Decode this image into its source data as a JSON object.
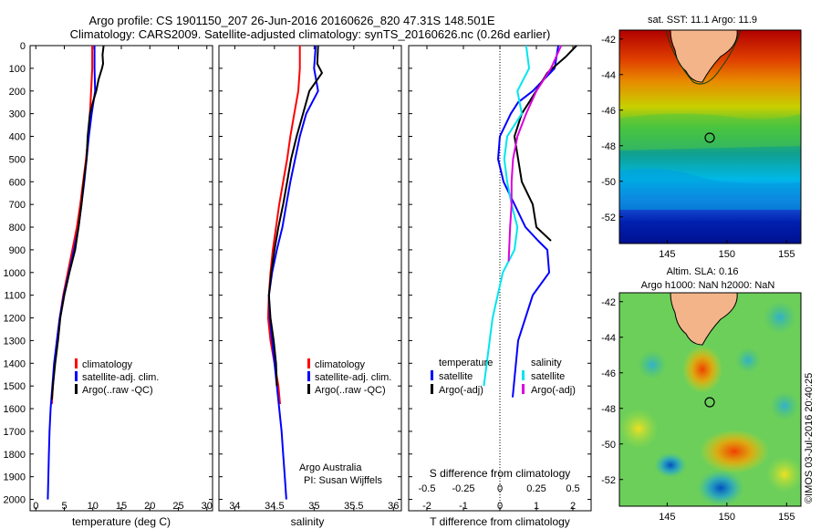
{
  "header": {
    "line1": "Argo profile: CS 1901150_207 26-Jun-2016 20160626_820 47.31S 148.501E",
    "line2": "Climatology: CARS2009. Satellite-adjusted climatology: synTS_20160626.nc (0.26d earlier)"
  },
  "side_label": "©IMOS 03-Jul-2016 20:40:25",
  "map1": {
    "title": "sat. SST: 11.1  Argo: 11.9"
  },
  "map2": {
    "title1": "Altim. SLA: 0.16",
    "title2": "Argo h1000: NaN h2000: NaN"
  },
  "colors": {
    "argo": "#000000",
    "climatology": "#ff0000",
    "satellite": "#0000ff",
    "sal_satellite": "#00e5ee",
    "sal_argo": "#dd00dd"
  },
  "chart_data": [
    {
      "type": "line",
      "xlabel": "temperature (deg C)",
      "xlim": [
        -1,
        31
      ],
      "ylim": [
        2050,
        0
      ],
      "xticks": [
        "0",
        "5",
        "10",
        "15",
        "20",
        "25",
        "30"
      ],
      "yticks": [
        "0",
        "100",
        "200",
        "300",
        "400",
        "500",
        "600",
        "700",
        "800",
        "900",
        "1000",
        "1100",
        "1200",
        "1300",
        "1400",
        "1500",
        "1600",
        "1700",
        "1800",
        "1900",
        "2000"
      ],
      "legend": [
        "climatology",
        "satellite-adj. clim.",
        "Argo(..raw -QC)"
      ],
      "series": [
        {
          "name": "climatology",
          "color": "#ff0000",
          "x": [
            9.9,
            9.9,
            9.7,
            9.5,
            9.2,
            8.8,
            8.3,
            7.8,
            7.2,
            6.4,
            5.6,
            4.8,
            4.2,
            3.7,
            3.3,
            3.0,
            2.8
          ],
          "y": [
            0,
            100,
            200,
            300,
            400,
            500,
            600,
            700,
            800,
            900,
            1000,
            1100,
            1200,
            1300,
            1400,
            1500,
            1580
          ]
        },
        {
          "name": "satellite-adj. clim.",
          "color": "#0000ff",
          "x": [
            10.3,
            10.3,
            10.4,
            9.8,
            9.3,
            8.9,
            8.5,
            8.0,
            7.5,
            6.7,
            5.8,
            4.9,
            4.2,
            3.7,
            3.2,
            2.9,
            2.6,
            2.4,
            2.3,
            2.2,
            2.1
          ],
          "y": [
            0,
            100,
            200,
            300,
            400,
            500,
            600,
            700,
            800,
            900,
            1000,
            1100,
            1200,
            1300,
            1400,
            1500,
            1600,
            1700,
            1800,
            1900,
            2000
          ]
        },
        {
          "name": "Argo(..raw -QC)",
          "color": "#000000",
          "x": [
            11.9,
            11.7,
            11.8,
            11.6,
            11.0,
            10.6,
            10.0,
            9.5,
            9.1,
            8.9,
            8.4,
            8.0,
            7.5,
            6.9,
            5.9,
            5.0,
            4.3,
            3.9,
            3.4,
            3.0,
            2.8
          ],
          "y": [
            0,
            40,
            80,
            100,
            150,
            200,
            250,
            300,
            400,
            500,
            600,
            700,
            800,
            900,
            1000,
            1100,
            1200,
            1300,
            1400,
            1500,
            1560
          ]
        }
      ]
    },
    {
      "type": "line",
      "xlabel": "salinity",
      "xlim": [
        33.8,
        36.1
      ],
      "ylim": [
        2050,
        0
      ],
      "xticks": [
        "34",
        "34.5",
        "35",
        "35.5",
        "36"
      ],
      "legend": [
        "climatology",
        "satellite-adj. clim.",
        "Argo(..raw -QC)"
      ],
      "annotation": [
        "Argo Australia",
        "PI: Susan Wijffels"
      ],
      "series": [
        {
          "name": "climatology",
          "color": "#ff0000",
          "x": [
            34.82,
            34.82,
            34.8,
            34.75,
            34.7,
            34.66,
            34.61,
            34.56,
            34.52,
            34.48,
            34.45,
            34.43,
            34.42,
            34.45,
            34.5,
            34.55,
            34.57
          ],
          "y": [
            0,
            100,
            200,
            300,
            400,
            500,
            600,
            700,
            800,
            900,
            1000,
            1100,
            1200,
            1300,
            1400,
            1500,
            1580
          ]
        },
        {
          "name": "satellite-adj. clim.",
          "color": "#0000ff",
          "x": [
            35.02,
            35.0,
            35.05,
            34.9,
            34.82,
            34.76,
            34.7,
            34.65,
            34.6,
            34.53,
            34.47,
            34.43,
            34.44,
            34.47,
            34.5,
            34.53,
            34.56,
            34.59,
            34.61,
            34.63,
            34.65
          ],
          "y": [
            0,
            100,
            200,
            300,
            400,
            500,
            600,
            700,
            800,
            900,
            1000,
            1100,
            1200,
            1300,
            1400,
            1500,
            1600,
            1700,
            1800,
            1900,
            2000
          ]
        },
        {
          "name": "Argo(..raw -QC)",
          "color": "#000000",
          "x": [
            35.05,
            35.04,
            35.1,
            34.94,
            34.86,
            34.78,
            34.71,
            34.66,
            34.61,
            34.55,
            34.5,
            34.46,
            34.43,
            34.45,
            34.49,
            34.52,
            34.53
          ],
          "y": [
            0,
            80,
            120,
            200,
            300,
            400,
            500,
            600,
            700,
            800,
            900,
            1000,
            1100,
            1200,
            1300,
            1400,
            1500
          ]
        }
      ]
    },
    {
      "type": "line",
      "xlabel": "T difference from climatology",
      "top_label": "S difference from climatology",
      "xlim": [
        -2.5,
        2.5
      ],
      "ylim": [
        2050,
        0
      ],
      "xticks": [
        "-2",
        "-1",
        "0",
        "1",
        "2"
      ],
      "top_ticks": [
        "-0.5",
        "-0.25",
        "0",
        "0.25",
        "0.5"
      ],
      "legend_temperature": [
        "temperature",
        "satellite",
        "Argo(-adj)"
      ],
      "legend_salinity": [
        "salinity",
        "satellite",
        "Argo(-adj)"
      ],
      "series": [
        {
          "name": "temperature satellite",
          "color": "#0000ff",
          "x": [
            1.6,
            1.5,
            0.9,
            0.5,
            0.3,
            0.0,
            -0.05,
            0.1,
            0.4,
            0.7,
            1.05,
            1.3,
            1.35,
            0.9,
            0.5,
            0.35
          ],
          "y": [
            0,
            100,
            200,
            250,
            300,
            400,
            500,
            600,
            700,
            800,
            860,
            900,
            1000,
            1100,
            1300,
            1550
          ]
        },
        {
          "name": "temperature Argo(-adj)",
          "color": "#000000",
          "x": [
            2.1,
            1.8,
            1.3,
            0.8,
            0.6,
            0.4,
            0.5,
            0.6,
            0.9,
            1.0,
            1.4
          ],
          "y": [
            0,
            50,
            120,
            250,
            300,
            400,
            500,
            600,
            700,
            800,
            860
          ]
        },
        {
          "name": "salinity satellite",
          "color": "#00e5ee",
          "x": [
            0.18,
            0.2,
            0.12,
            0.15,
            0.05,
            0.03,
            0.05,
            0.08,
            0.12,
            0.1,
            0.02,
            -0.05,
            -0.11
          ],
          "y": [
            0,
            100,
            200,
            300,
            400,
            500,
            600,
            700,
            800,
            900,
            1000,
            1200,
            1500
          ]
        },
        {
          "name": "salinity Argo(-adj)",
          "color": "#dd00dd",
          "x": [
            0.42,
            0.35,
            0.25,
            0.18,
            0.12,
            0.09,
            0.08,
            0.08,
            0.07,
            0.06
          ],
          "y": [
            0,
            100,
            200,
            300,
            400,
            500,
            600,
            700,
            800,
            950
          ]
        }
      ]
    }
  ],
  "maps": {
    "x_ticks": [
      "145",
      "150",
      "155"
    ],
    "y_ticks": [
      "-42",
      "-44",
      "-46",
      "-48",
      "-50",
      "-52"
    ]
  }
}
